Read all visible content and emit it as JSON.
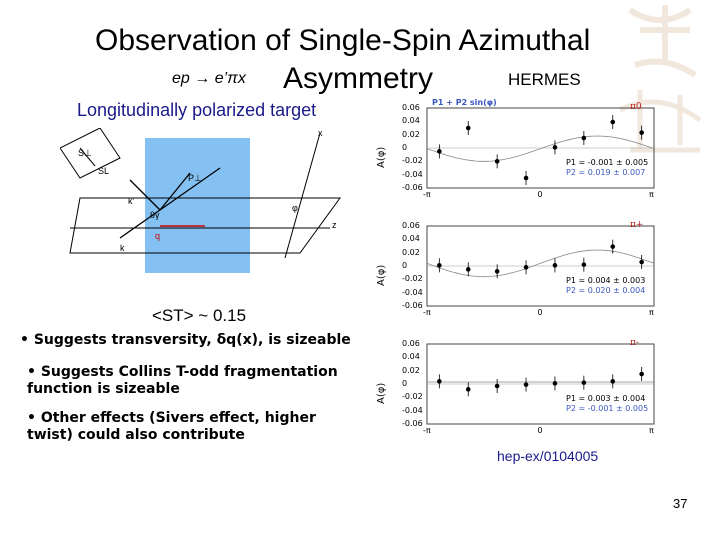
{
  "slide": {
    "title": "Observation of Single-Spin Azimuthal",
    "title_line2": "Asymmetry",
    "reaction": "ep → e’πx",
    "experiment": "HERMES",
    "subtitle": "Longitudinally polarized target",
    "st_value": "<ST> ~ 0.15",
    "bullets": [
      "• Suggests transversity, δq(x), is sizeable",
      "• Suggests Collins T-odd fragmentation function is sizeable",
      "• Other effects (Sivers effect, higher twist) could also contribute"
    ],
    "reference": "hep-ex/0104005",
    "page_number": "37"
  },
  "diagram_labels": {
    "s_perp": "S⊥",
    "s_l": "SL",
    "p_perp": "P⊥",
    "k_prime": "k'",
    "k": "k",
    "theta": "θγ",
    "q": "q",
    "phi": "φ",
    "z": "z",
    "x": "x"
  },
  "chart_data": [
    {
      "type": "scatter",
      "title": "P1 + P2 sin(φ)",
      "particle": "π0",
      "ylabel": "A(φ)",
      "x_ticks": [
        "-π",
        "0",
        "π"
      ],
      "y_ticks": [
        "0.06",
        "0.04",
        "0.02",
        "0",
        "-0.02",
        "-0.04",
        "-0.06"
      ],
      "ylim": [
        -0.06,
        0.06
      ],
      "x": [
        -2.8,
        -2.0,
        -1.2,
        -0.4,
        0.4,
        1.2,
        2.0,
        2.8
      ],
      "y": [
        -0.005,
        0.03,
        -0.02,
        -0.045,
        0.001,
        0.015,
        0.039,
        0.023
      ],
      "fit": {
        "P1": "P1 = -0.001 ± 0.005",
        "P2": "P2 = 0.019 ± 0.007"
      }
    },
    {
      "type": "scatter",
      "particle": "π+",
      "ylabel": "A(φ)",
      "x_ticks": [
        "-π",
        "0",
        "π"
      ],
      "y_ticks": [
        "0.06",
        "0.04",
        "0.02",
        "0",
        "-0.02",
        "-0.04",
        "-0.06"
      ],
      "ylim": [
        -0.06,
        0.06
      ],
      "x": [
        -2.8,
        -2.0,
        -1.2,
        -0.4,
        0.4,
        1.2,
        2.0,
        2.8
      ],
      "y": [
        0.001,
        -0.005,
        -0.008,
        -0.002,
        0.001,
        0.002,
        0.029,
        0.006
      ],
      "fit": {
        "P1": "P1 = 0.004 ± 0.003",
        "P2": "P2 = 0.020 ± 0.004"
      }
    },
    {
      "type": "scatter",
      "particle": "π-",
      "ylabel": "A(φ)",
      "x_ticks": [
        "-π",
        "0",
        "π"
      ],
      "y_ticks": [
        "0.06",
        "0.04",
        "0.02",
        "0",
        "-0.02",
        "-0.04",
        "-0.06"
      ],
      "ylim": [
        -0.06,
        0.06
      ],
      "x": [
        -2.8,
        -2.0,
        -1.2,
        -0.4,
        0.4,
        1.2,
        2.0,
        2.8
      ],
      "y": [
        0.004,
        -0.008,
        -0.003,
        -0.001,
        0.001,
        0.002,
        0.004,
        0.015
      ],
      "fit": {
        "P1": "P1 = 0.003 ± 0.004",
        "P2": "P2 = -0.001 ± 0.005"
      }
    }
  ]
}
